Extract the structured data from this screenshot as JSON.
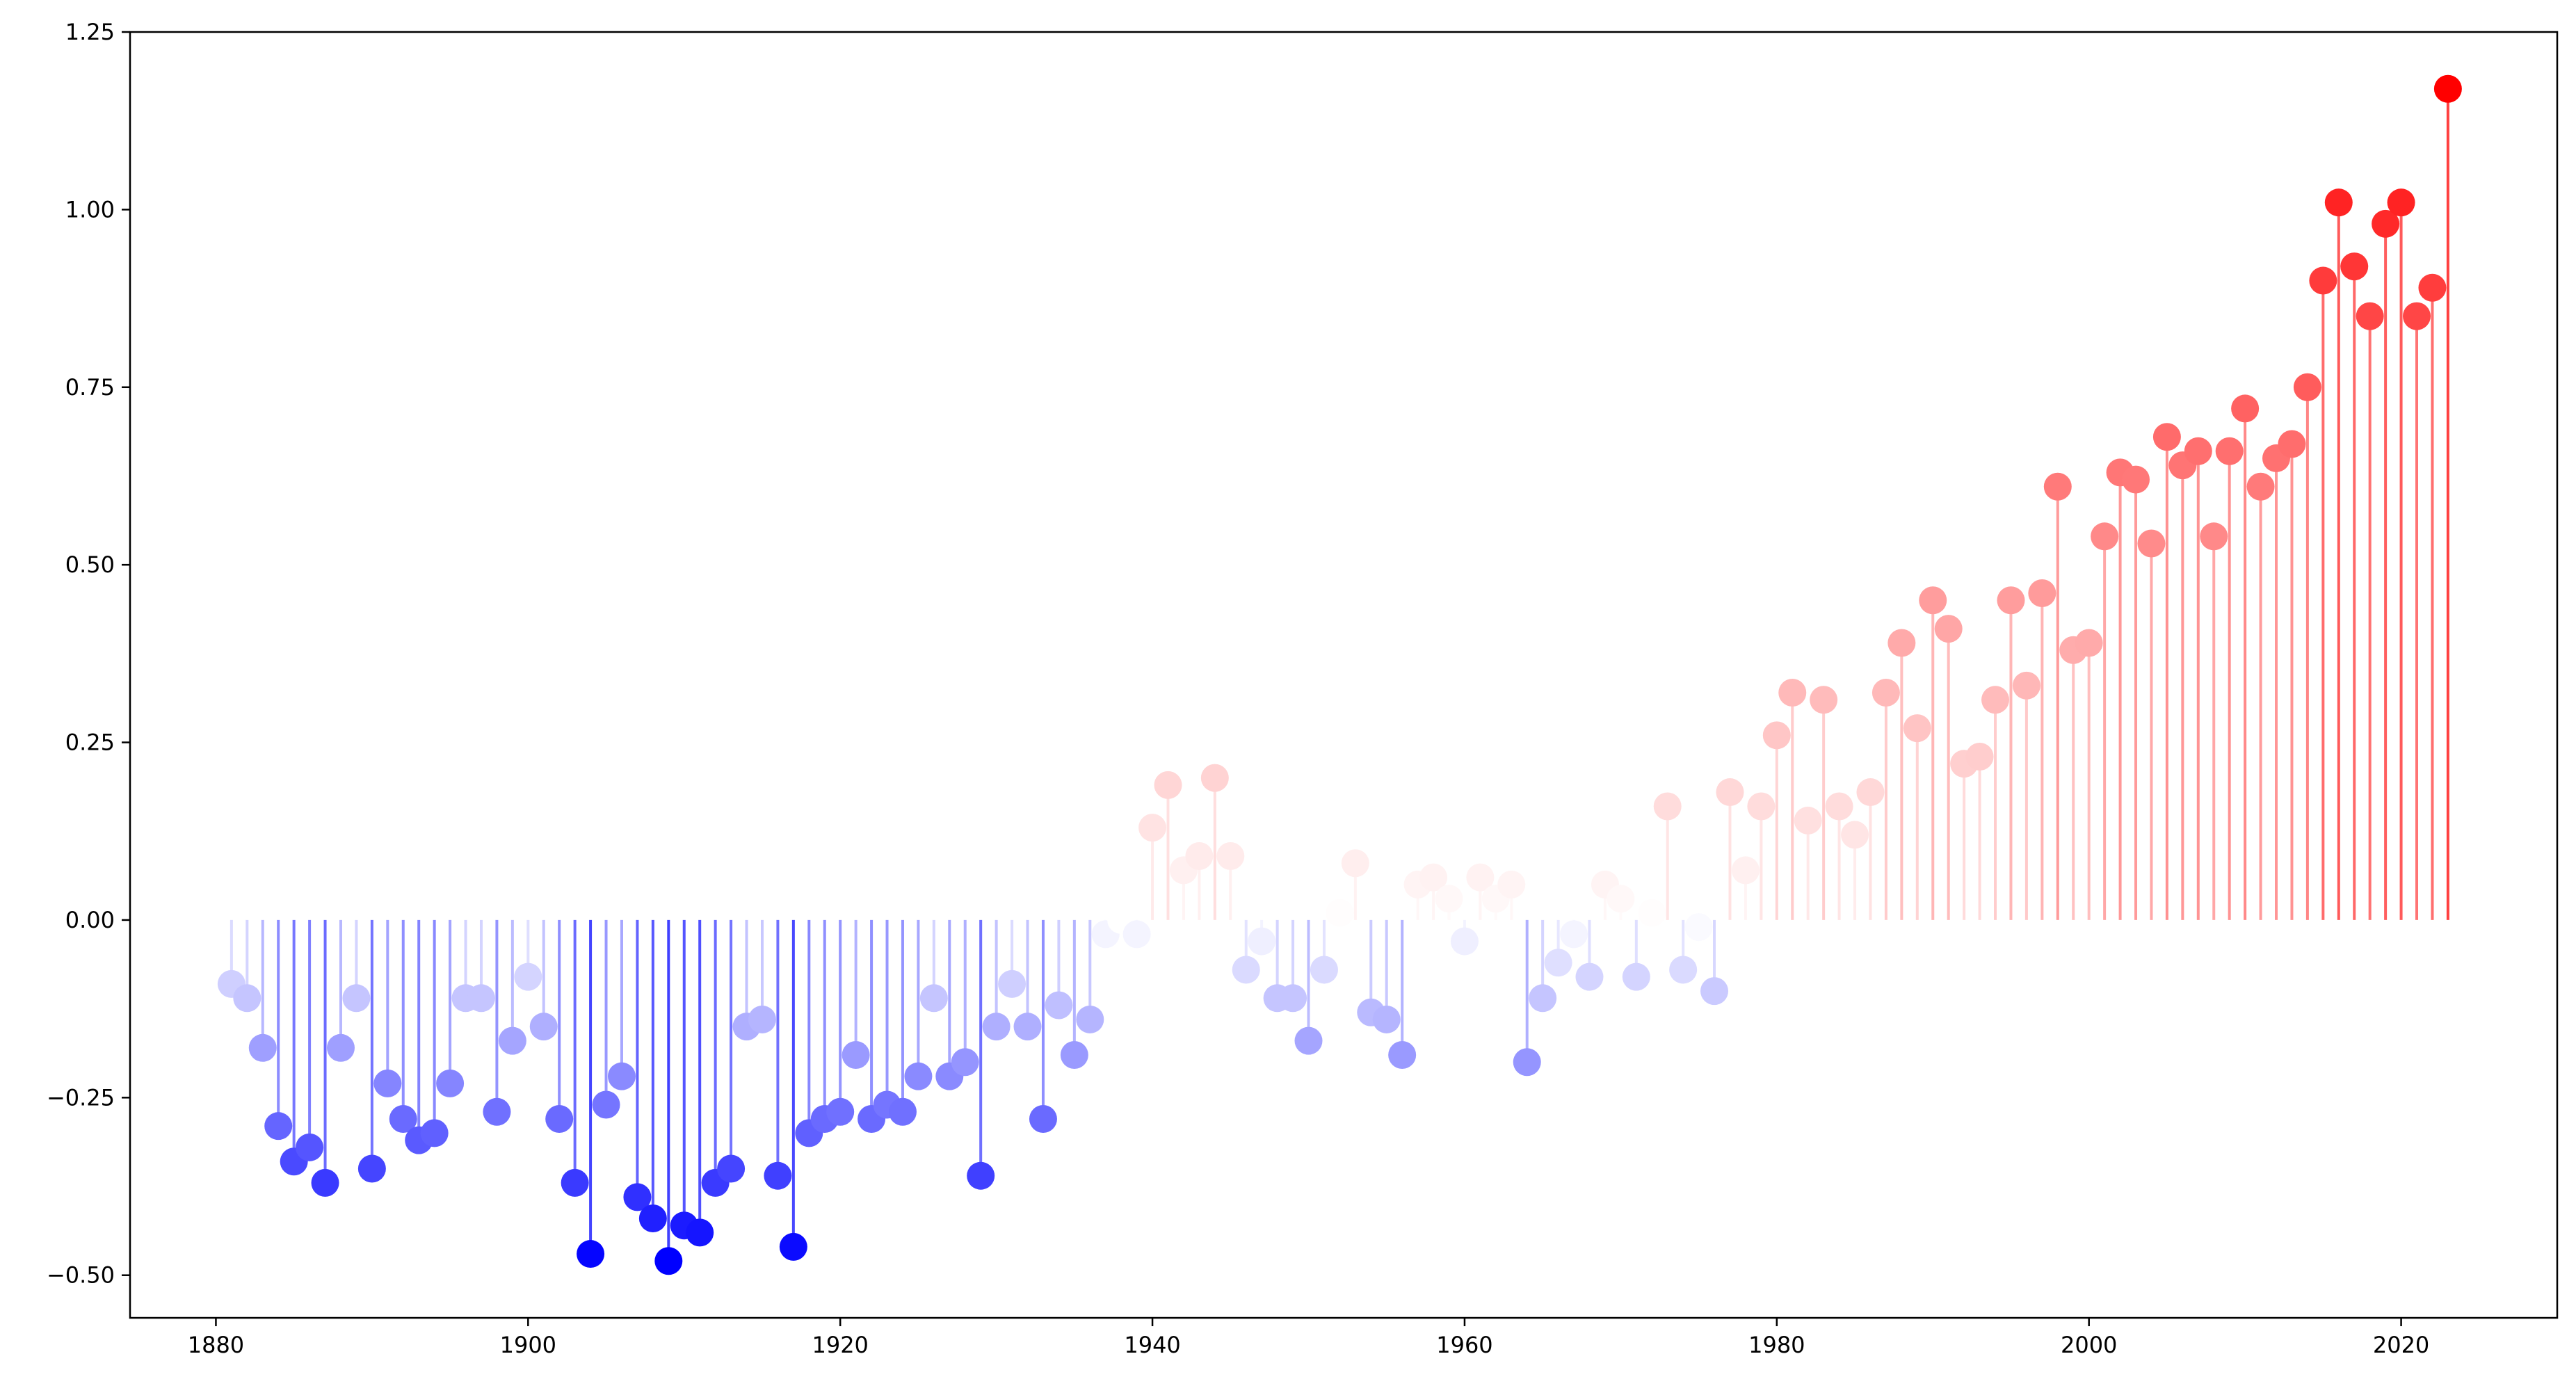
{
  "chart_data": {
    "type": "scatter",
    "subtype": "lollipop",
    "title": "",
    "xlabel": "",
    "ylabel": "",
    "baseline": 0.0,
    "xlim": [
      1874.5,
      2030
    ],
    "ylim": [
      -0.56,
      1.25
    ],
    "x_ticks": [
      1880,
      1900,
      1920,
      1940,
      1960,
      1980,
      2000,
      2020
    ],
    "y_ticks": [
      -0.5,
      -0.25,
      0.0,
      0.25,
      0.5,
      0.75,
      1.0,
      1.25
    ],
    "x_tick_labels": [
      "1880",
      "1900",
      "1920",
      "1940",
      "1960",
      "1980",
      "2000",
      "2020"
    ],
    "y_tick_labels": [
      "−0.50",
      "−0.25",
      "0.00",
      "0.25",
      "0.50",
      "0.75",
      "1.00",
      "1.25"
    ],
    "grid": false,
    "colormap": "bwr",
    "colors": {
      "low": "#0000ff",
      "mid": "#ffffff",
      "high": "#ff0000"
    },
    "x": [
      1881,
      1882,
      1883,
      1884,
      1885,
      1886,
      1887,
      1888,
      1889,
      1890,
      1891,
      1892,
      1893,
      1894,
      1895,
      1896,
      1897,
      1898,
      1899,
      1900,
      1901,
      1902,
      1903,
      1904,
      1905,
      1906,
      1907,
      1908,
      1909,
      1910,
      1911,
      1912,
      1913,
      1914,
      1915,
      1916,
      1917,
      1918,
      1919,
      1920,
      1921,
      1922,
      1923,
      1924,
      1925,
      1926,
      1927,
      1928,
      1929,
      1930,
      1931,
      1932,
      1933,
      1934,
      1935,
      1936,
      1937,
      1938,
      1939,
      1940,
      1941,
      1942,
      1943,
      1944,
      1945,
      1946,
      1947,
      1948,
      1949,
      1950,
      1951,
      1952,
      1953,
      1954,
      1955,
      1956,
      1957,
      1958,
      1959,
      1960,
      1961,
      1962,
      1963,
      1964,
      1965,
      1966,
      1967,
      1968,
      1969,
      1970,
      1971,
      1972,
      1973,
      1974,
      1975,
      1976,
      1977,
      1978,
      1979,
      1980,
      1981,
      1982,
      1983,
      1984,
      1985,
      1986,
      1987,
      1988,
      1989,
      1990,
      1991,
      1992,
      1993,
      1994,
      1995,
      1996,
      1997,
      1998,
      1999,
      2000,
      2001,
      2002,
      2003,
      2004,
      2005,
      2006,
      2007,
      2008,
      2009,
      2010,
      2011,
      2012,
      2013,
      2014,
      2015,
      2016,
      2017,
      2018,
      2019,
      2020,
      2021,
      2022,
      2023
    ],
    "y": [
      -0.09,
      -0.11,
      -0.18,
      -0.29,
      -0.34,
      -0.32,
      -0.37,
      -0.18,
      -0.11,
      -0.35,
      -0.23,
      -0.28,
      -0.31,
      -0.3,
      -0.23,
      -0.11,
      -0.11,
      -0.27,
      -0.17,
      -0.08,
      -0.15,
      -0.28,
      -0.37,
      -0.47,
      -0.26,
      -0.22,
      -0.39,
      -0.42,
      -0.48,
      -0.43,
      -0.44,
      -0.37,
      -0.35,
      -0.15,
      -0.14,
      -0.36,
      -0.46,
      -0.3,
      -0.28,
      -0.27,
      -0.19,
      -0.28,
      -0.26,
      -0.27,
      -0.22,
      -0.11,
      -0.22,
      -0.2,
      -0.36,
      -0.15,
      -0.09,
      -0.15,
      -0.28,
      -0.12,
      -0.19,
      -0.14,
      -0.02,
      0.0,
      -0.02,
      0.13,
      0.19,
      0.07,
      0.09,
      0.2,
      0.09,
      -0.07,
      -0.03,
      -0.11,
      -0.11,
      -0.17,
      -0.07,
      0.01,
      0.08,
      -0.13,
      -0.14,
      -0.19,
      0.05,
      0.06,
      0.03,
      -0.03,
      0.06,
      0.03,
      0.05,
      -0.2,
      -0.11,
      -0.06,
      -0.02,
      -0.08,
      0.05,
      0.03,
      -0.08,
      0.01,
      0.16,
      -0.07,
      -0.01,
      -0.1,
      0.18,
      0.07,
      0.16,
      0.26,
      0.32,
      0.14,
      0.31,
      0.16,
      0.12,
      0.18,
      0.32,
      0.39,
      0.27,
      0.45,
      0.41,
      0.22,
      0.23,
      0.31,
      0.45,
      0.33,
      0.46,
      0.61,
      0.38,
      0.39,
      0.54,
      0.63,
      0.62,
      0.53,
      0.68,
      0.64,
      0.66,
      0.54,
      0.66,
      0.72,
      0.61,
      0.65,
      0.67,
      0.75,
      0.9,
      1.01,
      0.92,
      0.85,
      0.98,
      1.01,
      0.85,
      0.89,
      1.17
    ]
  }
}
